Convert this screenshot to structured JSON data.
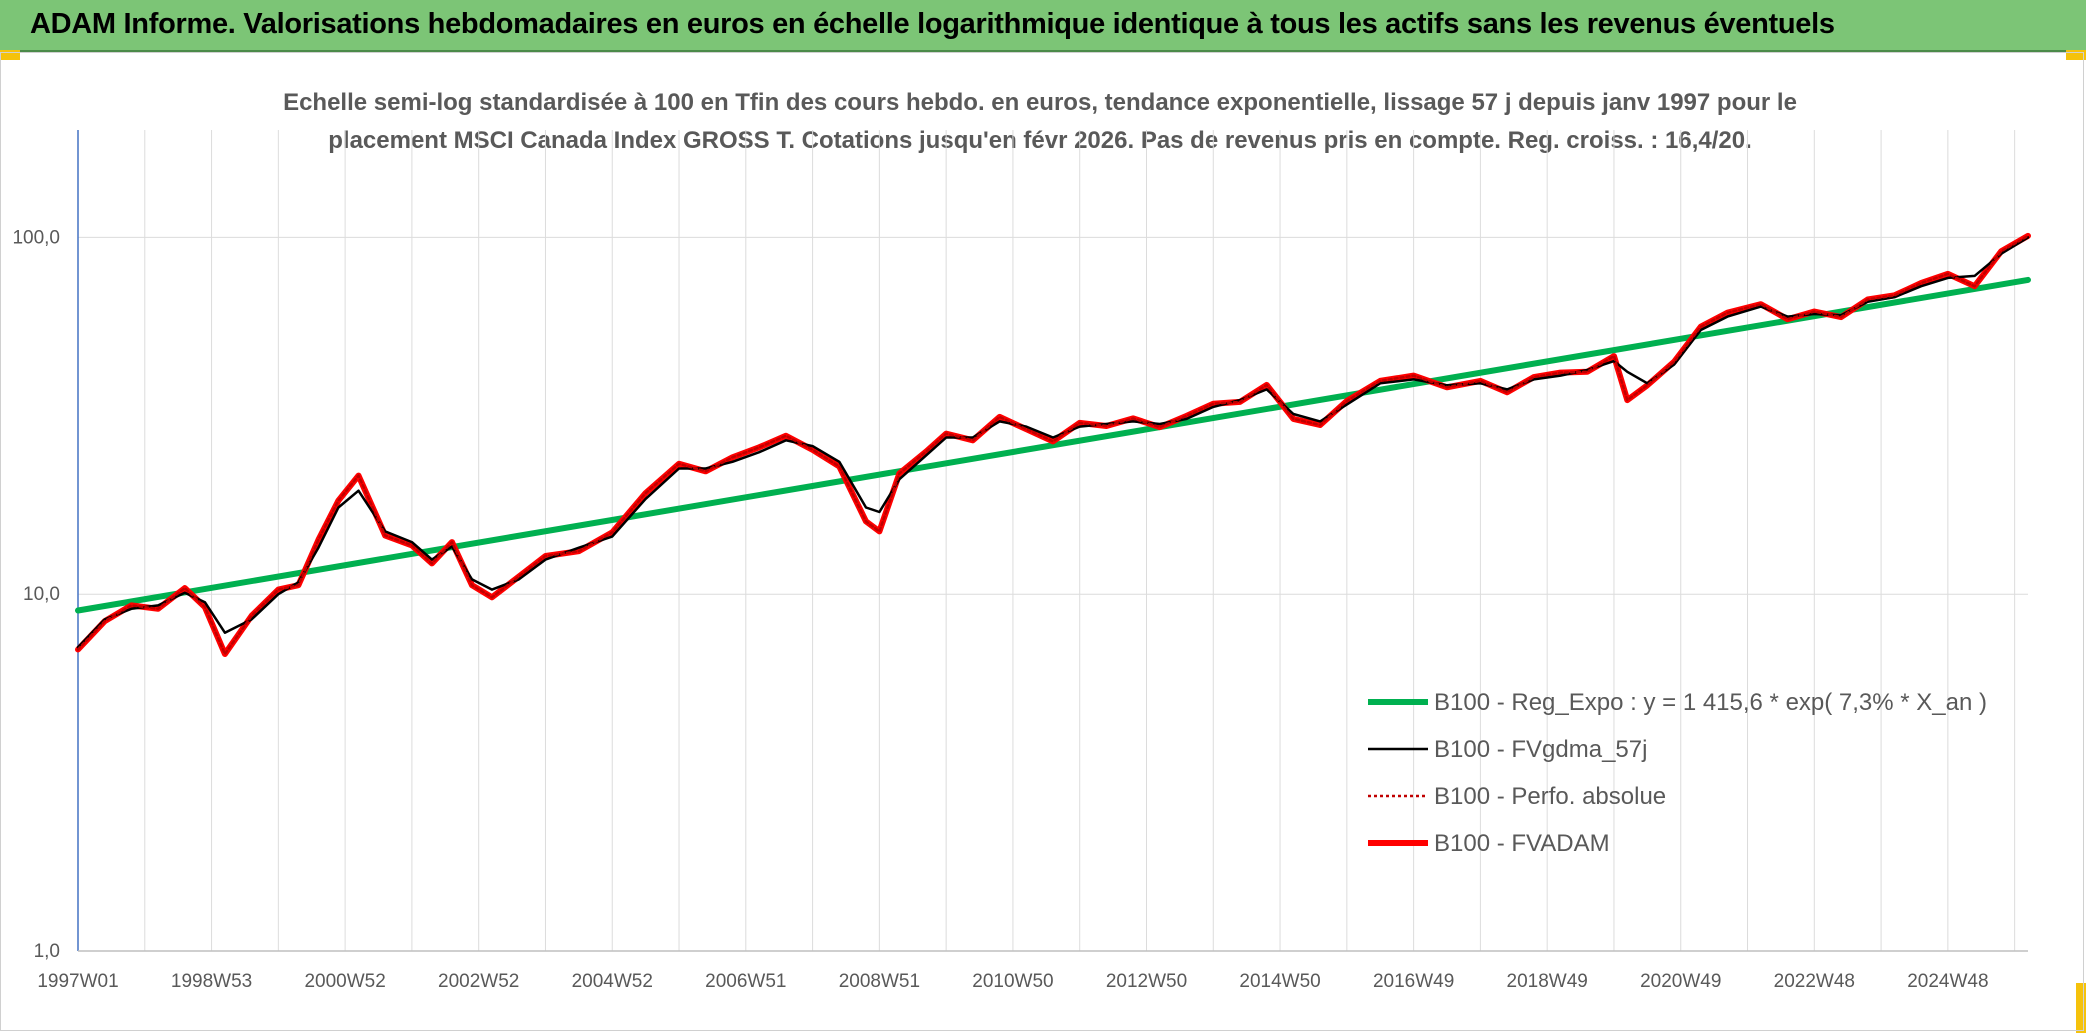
{
  "header": {
    "title": "ADAM Informe. Valorisations hebdomadaires en euros en échelle logarithmique identique à tous les actifs sans les revenus éventuels"
  },
  "colors": {
    "header_bg": "#7cc576",
    "regression": "#00b050",
    "smoothed": "#000000",
    "perf_absolue": "#c00000",
    "fvadam": "#ff0000"
  },
  "chart_data": {
    "type": "line",
    "title_line1": "Echelle semi-log standardisée à 100 en Tfin des cours hebdo. en euros, tendance exponentielle, lissage 57 j depuis janv 1997 pour le",
    "title_line2": "placement MSCI Canada Index GROSS T. Cotations jusqu'en févr 2026. Pas de revenus pris en compte. Reg. croiss. : 16,4/20.",
    "y_scale": "log",
    "ylim": [
      1,
      200
    ],
    "xlim": [
      1997.0,
      2026.2
    ],
    "y_ticks": [
      {
        "value": 1,
        "label": "1,0"
      },
      {
        "value": 10,
        "label": "10,0"
      },
      {
        "value": 100,
        "label": "100,0"
      }
    ],
    "x_ticks": [
      {
        "x": 1997.0,
        "label": "1997W01"
      },
      {
        "x": 1999.0,
        "label": "1998W53"
      },
      {
        "x": 2001.0,
        "label": "2000W52"
      },
      {
        "x": 2003.0,
        "label": "2002W52"
      },
      {
        "x": 2005.0,
        "label": "2004W52"
      },
      {
        "x": 2007.0,
        "label": "2006W51"
      },
      {
        "x": 2009.0,
        "label": "2008W51"
      },
      {
        "x": 2011.0,
        "label": "2010W50"
      },
      {
        "x": 2013.0,
        "label": "2012W50"
      },
      {
        "x": 2015.0,
        "label": "2014W50"
      },
      {
        "x": 2017.0,
        "label": "2016W49"
      },
      {
        "x": 2019.0,
        "label": "2018W49"
      },
      {
        "x": 2021.0,
        "label": "2020W49"
      },
      {
        "x": 2023.0,
        "label": "2022W48"
      },
      {
        "x": 2025.0,
        "label": "2024W48"
      }
    ],
    "grid": true,
    "legend_position": "bottom-right",
    "series": [
      {
        "name": "B100 - Reg_Expo : y = 1 415,6 * exp( 7,3% *  X_an )",
        "color": "#00b050",
        "style": "thick",
        "x": [
          1997.0,
          2026.2
        ],
        "y": [
          9.0,
          76.0
        ]
      },
      {
        "name": "B100 - FVgdma_57j",
        "color": "#000000",
        "style": "thin",
        "x": [
          1997.0,
          1997.4,
          1997.8,
          1998.2,
          1998.6,
          1998.9,
          1999.2,
          1999.6,
          2000.0,
          2000.3,
          2000.6,
          2000.9,
          2001.2,
          2001.6,
          2002.0,
          2002.3,
          2002.6,
          2002.9,
          2003.2,
          2003.6,
          2004.0,
          2004.5,
          2005.0,
          2005.5,
          2006.0,
          2006.4,
          2006.8,
          2007.2,
          2007.6,
          2008.0,
          2008.4,
          2008.8,
          2009.0,
          2009.3,
          2009.7,
          2010.0,
          2010.4,
          2010.8,
          2011.2,
          2011.6,
          2012.0,
          2012.4,
          2012.8,
          2013.2,
          2013.6,
          2014.0,
          2014.4,
          2014.8,
          2015.2,
          2015.6,
          2016.0,
          2016.5,
          2017.0,
          2017.5,
          2018.0,
          2018.4,
          2018.8,
          2019.2,
          2019.6,
          2020.0,
          2020.2,
          2020.5,
          2020.9,
          2021.3,
          2021.7,
          2022.2,
          2022.6,
          2023.0,
          2023.4,
          2023.8,
          2024.2,
          2024.6,
          2025.0,
          2025.4,
          2025.8,
          2026.2
        ],
        "y": [
          7.1,
          8.5,
          9.1,
          9.3,
          10.1,
          9.5,
          7.8,
          8.5,
          10.0,
          10.8,
          13.5,
          17.5,
          19.5,
          15.0,
          14.0,
          12.5,
          13.6,
          11.0,
          10.3,
          11.0,
          12.5,
          13.5,
          14.5,
          18.5,
          22.5,
          22.5,
          23.5,
          25.0,
          27.0,
          26.0,
          23.5,
          17.5,
          17.0,
          21.0,
          24.5,
          27.5,
          27.5,
          30.5,
          29.5,
          27.5,
          29.5,
          30.0,
          30.5,
          30.0,
          31.0,
          33.5,
          35.0,
          37.5,
          32.0,
          30.5,
          34.0,
          39.0,
          40.0,
          38.5,
          39.0,
          37.5,
          40.0,
          41.0,
          42.5,
          45.0,
          42.0,
          39.0,
          44.0,
          55.0,
          60.0,
          64.0,
          60.0,
          61.0,
          60.5,
          66.0,
          68.0,
          73.0,
          77.0,
          78.0,
          90.0,
          100.0
        ]
      },
      {
        "name": "B100 - Perfo. absolue",
        "color": "#c00000",
        "style": "dotted",
        "x": [
          1997.0,
          1997.4,
          1997.8,
          1998.2,
          1998.6,
          1998.9,
          1999.2,
          1999.6,
          2000.0,
          2000.3,
          2000.6,
          2000.9,
          2001.2,
          2001.6,
          2002.0,
          2002.3,
          2002.6,
          2002.9,
          2003.2,
          2003.6,
          2004.0,
          2004.5,
          2005.0,
          2005.5,
          2006.0,
          2006.4,
          2006.8,
          2007.2,
          2007.6,
          2008.0,
          2008.4,
          2008.8,
          2009.0,
          2009.3,
          2009.7,
          2010.0,
          2010.4,
          2010.8,
          2011.2,
          2011.6,
          2012.0,
          2012.4,
          2012.8,
          2013.2,
          2013.6,
          2014.0,
          2014.4,
          2014.8,
          2015.2,
          2015.6,
          2016.0,
          2016.5,
          2017.0,
          2017.5,
          2018.0,
          2018.4,
          2018.8,
          2019.2,
          2019.6,
          2020.0,
          2020.2,
          2020.5,
          2020.9,
          2021.3,
          2021.7,
          2022.2,
          2022.6,
          2023.0,
          2023.4,
          2023.8,
          2024.2,
          2024.6,
          2025.0,
          2025.4,
          2025.8,
          2026.2
        ],
        "y": [
          7.0,
          8.4,
          9.3,
          9.1,
          10.4,
          9.2,
          6.8,
          8.7,
          10.3,
          10.6,
          14.2,
          18.3,
          21.5,
          14.6,
          13.7,
          12.2,
          14.0,
          10.6,
          9.8,
          11.2,
          12.8,
          13.2,
          14.9,
          19.2,
          23.2,
          22.1,
          24.2,
          25.8,
          27.8,
          25.4,
          22.8,
          16.0,
          15.0,
          21.8,
          25.1,
          28.2,
          27.0,
          31.4,
          29.0,
          26.8,
          30.2,
          29.6,
          31.1,
          29.4,
          31.6,
          34.2,
          34.6,
          38.6,
          31.0,
          29.8,
          34.8,
          39.6,
          41.0,
          38.0,
          39.6,
          36.8,
          40.6,
          41.8,
          42.0,
          46.5,
          35.0,
          38.5,
          44.8,
          56.2,
          61.5,
          65.0,
          59.0,
          62.0,
          59.8,
          67.0,
          68.8,
          74.5,
          79.0,
          73.0,
          91.5,
          101.0
        ]
      },
      {
        "name": "B100 - FVADAM",
        "color": "#ff0000",
        "style": "thick",
        "x": [
          1997.0,
          1997.4,
          1997.8,
          1998.2,
          1998.6,
          1998.9,
          1999.2,
          1999.6,
          2000.0,
          2000.3,
          2000.6,
          2000.9,
          2001.2,
          2001.6,
          2002.0,
          2002.3,
          2002.6,
          2002.9,
          2003.2,
          2003.6,
          2004.0,
          2004.5,
          2005.0,
          2005.5,
          2006.0,
          2006.4,
          2006.8,
          2007.2,
          2007.6,
          2008.0,
          2008.4,
          2008.8,
          2009.0,
          2009.3,
          2009.7,
          2010.0,
          2010.4,
          2010.8,
          2011.2,
          2011.6,
          2012.0,
          2012.4,
          2012.8,
          2013.2,
          2013.6,
          2014.0,
          2014.4,
          2014.8,
          2015.2,
          2015.6,
          2016.0,
          2016.5,
          2017.0,
          2017.5,
          2018.0,
          2018.4,
          2018.8,
          2019.2,
          2019.6,
          2020.0,
          2020.2,
          2020.5,
          2020.9,
          2021.3,
          2021.7,
          2022.2,
          2022.6,
          2023.0,
          2023.4,
          2023.8,
          2024.2,
          2024.6,
          2025.0,
          2025.4,
          2025.8,
          2026.2
        ],
        "y": [
          7.0,
          8.4,
          9.3,
          9.1,
          10.4,
          9.2,
          6.8,
          8.7,
          10.3,
          10.6,
          14.2,
          18.3,
          21.5,
          14.6,
          13.7,
          12.2,
          14.0,
          10.6,
          9.8,
          11.2,
          12.8,
          13.2,
          14.9,
          19.2,
          23.2,
          22.1,
          24.2,
          25.8,
          27.8,
          25.4,
          22.8,
          16.0,
          15.0,
          21.8,
          25.1,
          28.2,
          27.0,
          31.4,
          29.0,
          26.8,
          30.2,
          29.6,
          31.1,
          29.4,
          31.6,
          34.2,
          34.6,
          38.6,
          31.0,
          29.8,
          34.8,
          39.6,
          41.0,
          38.0,
          39.6,
          36.8,
          40.6,
          41.8,
          42.0,
          46.5,
          35.0,
          38.5,
          44.8,
          56.2,
          61.5,
          65.0,
          59.0,
          62.0,
          59.8,
          67.0,
          68.8,
          74.5,
          79.0,
          73.0,
          91.5,
          101.0
        ]
      }
    ]
  }
}
